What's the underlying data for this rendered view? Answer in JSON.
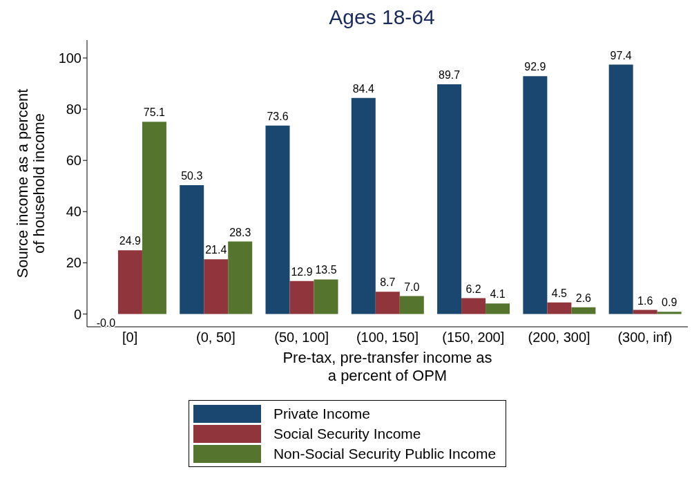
{
  "chart_data": {
    "type": "bar",
    "title": "Ages 18-64",
    "xlabel": "Pre-tax, pre-transfer income as\na percent of OPM",
    "ylabel": "Source income as a percent\nof household income",
    "categories": [
      "[0]",
      "(0, 50]",
      "(50, 100]",
      "(100, 150]",
      "(150, 200]",
      "(200, 300]",
      "(300, inf)"
    ],
    "series": [
      {
        "name": "Private Income",
        "color": "#1a476f",
        "values": [
          -0.04,
          50.3,
          73.6,
          84.4,
          89.7,
          92.9,
          97.4
        ],
        "value_labels": [
          "-0.0",
          "50.3",
          "73.6",
          "84.4",
          "89.7",
          "92.9",
          "97.4"
        ]
      },
      {
        "name": "Social Security Income",
        "color": "#90353b",
        "values": [
          24.9,
          21.4,
          12.9,
          8.7,
          6.2,
          4.5,
          1.6
        ],
        "value_labels": [
          "24.9",
          "21.4",
          "12.9",
          "8.7",
          "6.2",
          "4.5",
          "1.6"
        ]
      },
      {
        "name": "Non-Social Security Public Income",
        "color": "#55752f",
        "values": [
          75.1,
          28.3,
          13.5,
          7.0,
          4.1,
          2.6,
          0.9
        ],
        "value_labels": [
          "75.1",
          "28.3",
          "13.5",
          "7.0",
          "4.1",
          "2.6",
          "0.9"
        ]
      }
    ],
    "ylim": [
      -5,
      107
    ],
    "yticks": [
      0,
      20,
      40,
      60,
      80,
      100
    ],
    "legend": "bottom"
  }
}
